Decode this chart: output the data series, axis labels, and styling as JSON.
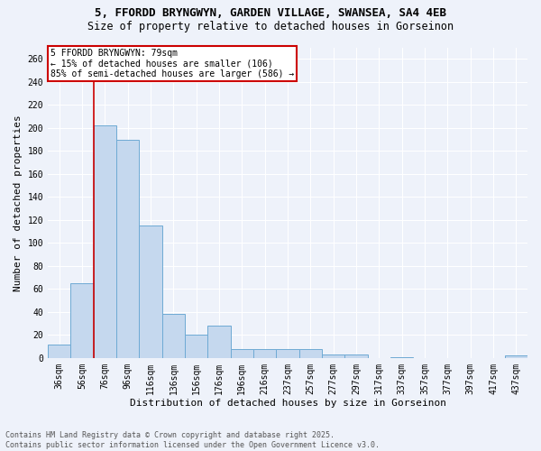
{
  "title1": "5, FFORDD BRYNGWYN, GARDEN VILLAGE, SWANSEA, SA4 4EB",
  "title2": "Size of property relative to detached houses in Gorseinon",
  "xlabel": "Distribution of detached houses by size in Gorseinon",
  "ylabel": "Number of detached properties",
  "categories": [
    "36sqm",
    "56sqm",
    "76sqm",
    "96sqm",
    "116sqm",
    "136sqm",
    "156sqm",
    "176sqm",
    "196sqm",
    "216sqm",
    "237sqm",
    "257sqm",
    "277sqm",
    "297sqm",
    "317sqm",
    "337sqm",
    "357sqm",
    "377sqm",
    "397sqm",
    "417sqm",
    "437sqm"
  ],
  "values": [
    12,
    65,
    202,
    190,
    115,
    38,
    20,
    28,
    8,
    8,
    8,
    8,
    3,
    3,
    0,
    1,
    0,
    0,
    0,
    0,
    2
  ],
  "bar_color": "#c5d8ee",
  "bar_edge_color": "#6eaad4",
  "ylim": [
    0,
    270
  ],
  "yticks": [
    0,
    20,
    40,
    60,
    80,
    100,
    120,
    140,
    160,
    180,
    200,
    220,
    240,
    260
  ],
  "property_label": "5 FFORDD BRYNGWYN: 79sqm",
  "annotation_line1": "← 15% of detached houses are smaller (106)",
  "annotation_line2": "85% of semi-detached houses are larger (586) →",
  "redline_x": 1.5,
  "annotation_box_color": "#ffffff",
  "annotation_box_edge": "#cc0000",
  "redline_color": "#cc0000",
  "footer1": "Contains HM Land Registry data © Crown copyright and database right 2025.",
  "footer2": "Contains public sector information licensed under the Open Government Licence v3.0.",
  "bg_color": "#eef2fa",
  "grid_color": "#ffffff",
  "title1_fontsize": 9,
  "title2_fontsize": 8.5,
  "axis_label_fontsize": 8,
  "tick_fontsize": 7,
  "annot_fontsize": 7,
  "footer_fontsize": 6
}
